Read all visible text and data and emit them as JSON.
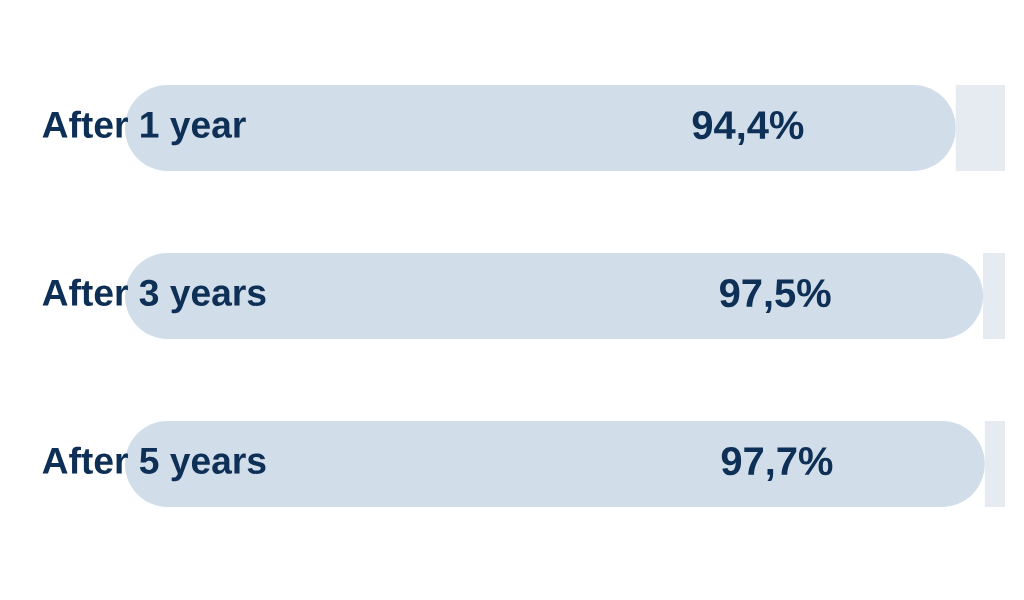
{
  "chart_data": {
    "type": "bar",
    "orientation": "horizontal",
    "stacked": true,
    "categories": [
      "After 1 year",
      "After 3 years",
      "After 5 years"
    ],
    "series": [
      {
        "values": [
          94.4,
          97.5,
          97.7
        ],
        "color": "#d1dde9",
        "value_labels": [
          "94,4%",
          "97,5%",
          "97,7%"
        ]
      },
      {
        "values": [
          5.6,
          2.5,
          2.3
        ],
        "color": "#e6ebf1"
      }
    ],
    "tick_labels": "y"
  }
}
